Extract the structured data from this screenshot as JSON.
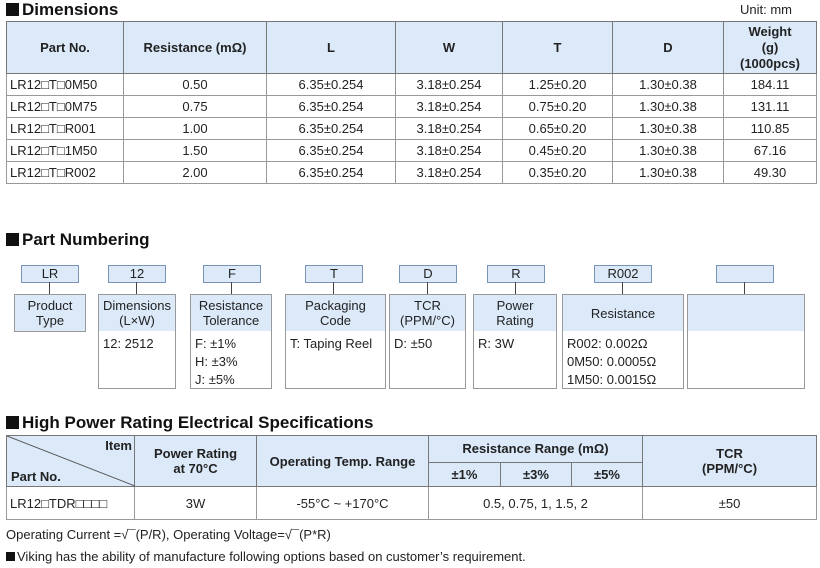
{
  "dimensions": {
    "title": "Dimensions",
    "unit": "Unit: mm",
    "headers": [
      "Part No.",
      "Resistance (mΩ)",
      "L",
      "W",
      "T",
      "D",
      "Weight (g) (1000pcs)"
    ],
    "weight_header": [
      "Weight",
      "(g)",
      "(1000pcs)"
    ],
    "rows": [
      [
        "LR12□T□0M50",
        "0.50",
        "6.35±0.254",
        "3.18±0.254",
        "1.25±0.20",
        "1.30±0.38",
        "184.11"
      ],
      [
        "LR12□T□0M75",
        "0.75",
        "6.35±0.254",
        "3.18±0.254",
        "0.75±0.20",
        "1.30±0.38",
        "131.11"
      ],
      [
        "LR12□T□R001",
        "1.00",
        "6.35±0.254",
        "3.18±0.254",
        "0.65±0.20",
        "1.30±0.38",
        "110.85"
      ],
      [
        "LR12□T□1M50",
        "1.50",
        "6.35±0.254",
        "3.18±0.254",
        "0.45±0.20",
        "1.30±0.38",
        "67.16"
      ],
      [
        "LR12□T□R002",
        "2.00",
        "6.35±0.254",
        "3.18±0.254",
        "0.35±0.20",
        "1.30±0.38",
        "49.30"
      ]
    ]
  },
  "part_numbering": {
    "title": "Part Numbering",
    "codes": [
      "LR",
      "12",
      "F",
      "T",
      "D",
      "R",
      "R002",
      ""
    ],
    "labels": [
      [
        "Product",
        "Type"
      ],
      [
        "Dimensions",
        "(L×W)"
      ],
      [
        "Resistance",
        "Tolerance"
      ],
      [
        "Packaging",
        "Code"
      ],
      [
        "TCR",
        "(PPM/°C)"
      ],
      [
        "Power",
        "Rating"
      ],
      [
        "Resistance",
        ""
      ],
      [
        "",
        ""
      ]
    ],
    "options": [
      [],
      [
        "12: 2512"
      ],
      [
        "F: ±1%",
        "H: ±3%",
        "J: ±5%"
      ],
      [
        "T: Taping Reel"
      ],
      [
        "D: ±50"
      ],
      [
        "R: 3W"
      ],
      [
        "R002: 0.002Ω",
        "0M50: 0.0005Ω",
        "1M50: 0.0015Ω"
      ],
      []
    ]
  },
  "high_power": {
    "title": "High Power Rating Electrical Specifications",
    "item_label": "Item",
    "part_label": "Part No.",
    "power_header": [
      "Power Rating",
      "at 70°C"
    ],
    "temp_header": "Operating Temp. Range",
    "range_header": "Resistance Range (mΩ)",
    "tolerances": [
      "±1%",
      "±3%",
      "±5%"
    ],
    "tcr_header": [
      "TCR",
      "(PPM/°C)"
    ],
    "row": {
      "part": "LR12□TDR□□□□",
      "power": "3W",
      "temp": "-55°C ~ +170°C",
      "range": "0.5, 0.75, 1, 1.5, 2",
      "tcr": "±50"
    }
  },
  "notes": {
    "formula": "Operating Current =√¯(P/R), Operating Voltage=√¯(P*R)",
    "viking": "Viking has the ability of manufacture following options based on customer’s requirement."
  }
}
